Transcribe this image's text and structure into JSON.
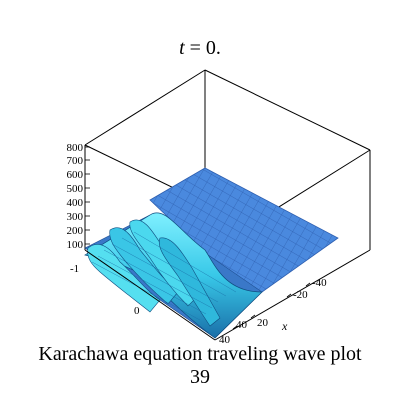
{
  "chart_data": {
    "type": "surface3d",
    "title_var": "t",
    "title_rest": " = 0.",
    "z_ticks": [
      "800",
      "700",
      "600",
      "500",
      "400",
      "300",
      "200",
      "100"
    ],
    "y_tick_edge": "-1",
    "y_tick_mid": "0",
    "x_ticks": [
      "-40",
      "-20",
      "20",
      "40"
    ],
    "x_extra_tick": "40",
    "xlabel": "x",
    "surface_color": "#4f8fe0",
    "wave_color": "#3fd0e6"
  },
  "caption": {
    "line1": "Karachawa equation  traveling wave plot",
    "line2": "39"
  }
}
